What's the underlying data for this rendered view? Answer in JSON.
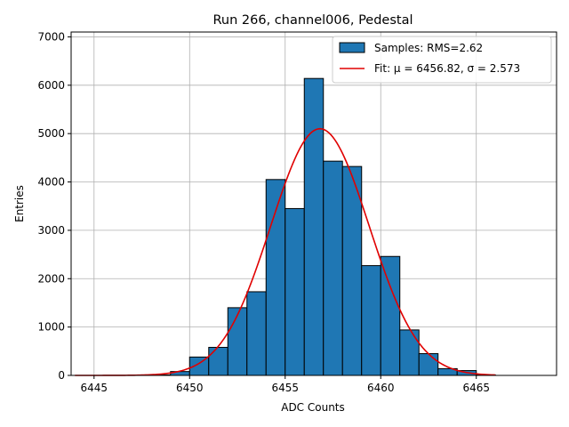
{
  "chart_data": {
    "type": "bar",
    "title": "Run 266, channel006, Pedestal",
    "xlabel": "ADC Counts",
    "ylabel": "Entries",
    "xlim": [
      6443.8,
      6469.2
    ],
    "ylim": [
      0,
      7100
    ],
    "xticks": [
      6445,
      6450,
      6455,
      6460,
      6465
    ],
    "yticks": [
      0,
      1000,
      2000,
      3000,
      4000,
      5000,
      6000,
      7000
    ],
    "grid": true,
    "legend_position": "top-right",
    "bin_width": 1,
    "bins": [
      {
        "x0": 6448,
        "value": 10
      },
      {
        "x0": 6449,
        "value": 80
      },
      {
        "x0": 6450,
        "value": 380
      },
      {
        "x0": 6451,
        "value": 580
      },
      {
        "x0": 6452,
        "value": 1400
      },
      {
        "x0": 6453,
        "value": 1730
      },
      {
        "x0": 6454,
        "value": 4050
      },
      {
        "x0": 6455,
        "value": 3450
      },
      {
        "x0": 6456,
        "value": 6140
      },
      {
        "x0": 6457,
        "value": 4430
      },
      {
        "x0": 6458,
        "value": 4320
      },
      {
        "x0": 6459,
        "value": 2270
      },
      {
        "x0": 6460,
        "value": 2460
      },
      {
        "x0": 6461,
        "value": 940
      },
      {
        "x0": 6462,
        "value": 450
      },
      {
        "x0": 6463,
        "value": 140
      },
      {
        "x0": 6464,
        "value": 100
      },
      {
        "x0": 6465,
        "value": 10
      }
    ],
    "fit": {
      "mu": 6456.82,
      "sigma": 2.573,
      "peak": 5100,
      "x_range": [
        6444,
        6466
      ]
    },
    "series": [
      {
        "name": "Samples: RMS=2.62",
        "kind": "histogram",
        "color": "#1f77b4"
      },
      {
        "name": "Fit: μ = 6456.82, σ = 2.573",
        "kind": "line",
        "color": "#e00000"
      }
    ]
  }
}
